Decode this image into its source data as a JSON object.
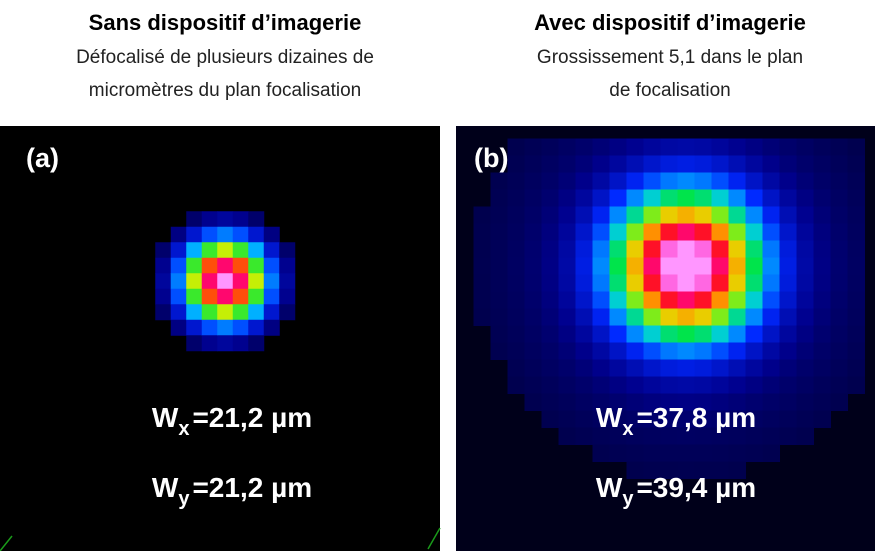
{
  "panels": [
    {
      "title": "Sans dispositif d’imagerie",
      "subtitle": [
        "Défocalisé de plusieurs dizaines de",
        "micromètres du plan focalisation"
      ],
      "label": "(a)",
      "measurements": [
        {
          "symbol": "W",
          "subscript": "x",
          "value": "=21,2 µm"
        },
        {
          "symbol": "W",
          "subscript": "y",
          "value": "=21,2 µm"
        }
      ]
    },
    {
      "title": "Avec dispositif d’imagerie",
      "subtitle": [
        "Grossissement 5,1 dans le plan",
        "de focalisation"
      ],
      "label": "(b)",
      "measurements": [
        {
          "symbol": "W",
          "subscript": "x",
          "value": "=37,8 µm"
        },
        {
          "symbol": "W",
          "subscript": "y",
          "value": "=39,4 µm"
        }
      ]
    }
  ]
}
